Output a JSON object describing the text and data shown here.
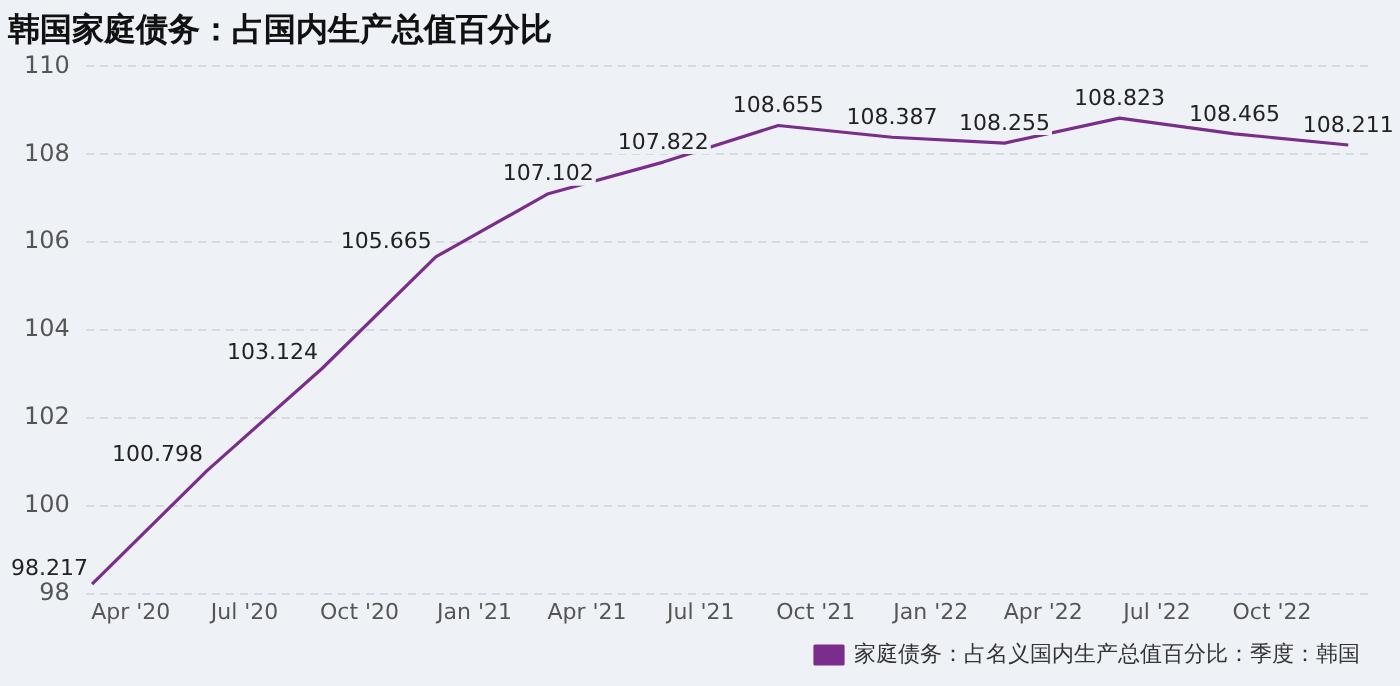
{
  "chart_data": {
    "type": "line",
    "title": "韩国家庭债务：占国内生产总值百分比",
    "x": [
      "2020-03",
      "2020-06",
      "2020-09",
      "2020-12",
      "2021-03",
      "2021-06",
      "2021-09",
      "2021-12",
      "2022-03",
      "2022-06",
      "2022-09",
      "2022-12"
    ],
    "series": [
      {
        "name": "家庭债务：占名义国内生产总值百分比：季度：韩国",
        "color": "#7b2d8b",
        "values": [
          98.217,
          100.798,
          103.124,
          105.665,
          107.102,
          107.822,
          108.655,
          108.387,
          108.255,
          108.823,
          108.465,
          108.211
        ]
      }
    ],
    "xlim": [
      "2020-02-25",
      "2022-12-20"
    ],
    "xticks": [
      {
        "value": "2020-04",
        "label": "Apr '20"
      },
      {
        "value": "2020-07",
        "label": "Jul '20"
      },
      {
        "value": "2020-10",
        "label": "Oct '20"
      },
      {
        "value": "2021-01",
        "label": "Jan '21"
      },
      {
        "value": "2021-04",
        "label": "Apr '21"
      },
      {
        "value": "2021-07",
        "label": "Jul '21"
      },
      {
        "value": "2021-10",
        "label": "Oct '21"
      },
      {
        "value": "2022-01",
        "label": "Jan '22"
      },
      {
        "value": "2022-04",
        "label": "Apr '22"
      },
      {
        "value": "2022-07",
        "label": "Jul '22"
      },
      {
        "value": "2022-10",
        "label": "Oct '22"
      }
    ],
    "ylim": [
      98,
      110
    ],
    "yticks": [
      98,
      100,
      102,
      104,
      106,
      108,
      110
    ],
    "grid": "y",
    "legend": "bottom right",
    "marker": "none",
    "line_style": "solid",
    "data_labels": true
  }
}
